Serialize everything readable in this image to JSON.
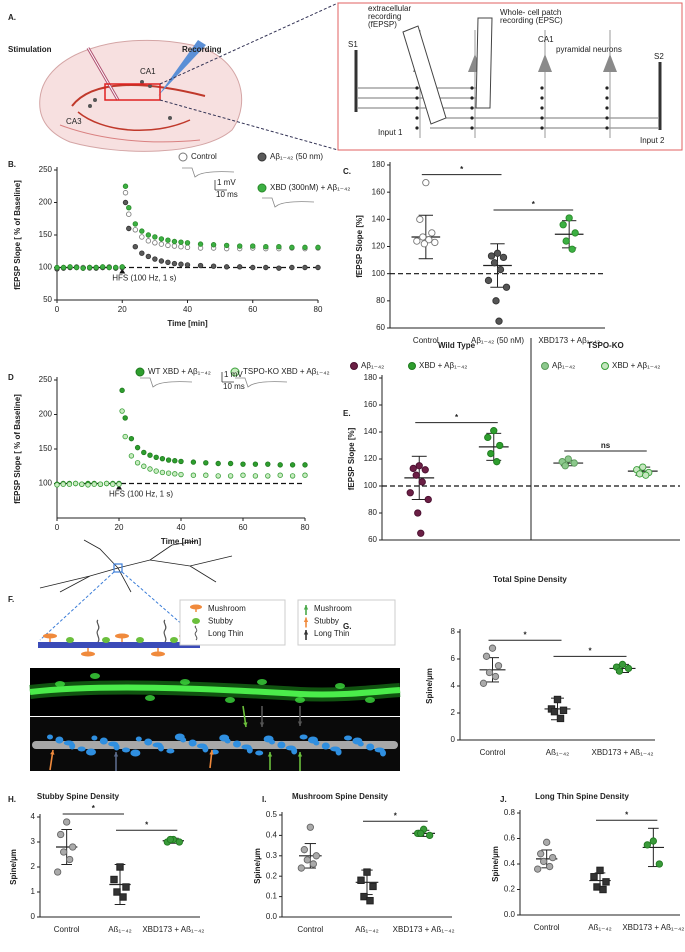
{
  "panels": {
    "A": {
      "label": "A.",
      "stimulation": "Stimulation",
      "recording": "Recording",
      "ca1": "CA1",
      "ca3": "CA3",
      "inset": {
        "extracellular": [
          "extracellular",
          "recording",
          "(fEPSP)"
        ],
        "whole_cell": [
          "Whole- cell patch",
          "recording (EPSC)"
        ],
        "s1": "S1",
        "s2": "S2",
        "ca1": "CA1",
        "pyramidal": "pyramidal neurons",
        "input1": "Input 1",
        "input2": "Input 2"
      }
    },
    "F": {
      "label": "F.",
      "shapes": [
        "Mushroom",
        "Stubby",
        "Long Thin"
      ],
      "arrows": [
        "Mushroom",
        "Stubby",
        "Long Thin"
      ]
    }
  },
  "chart_data": [
    {
      "type": "line",
      "panel_label": "B.",
      "x": [
        0,
        2,
        4,
        6,
        8,
        10,
        12,
        14,
        16,
        18,
        20,
        21,
        22,
        24,
        26,
        28,
        30,
        32,
        34,
        36,
        38,
        40,
        44,
        48,
        52,
        56,
        60,
        64,
        68,
        72,
        76,
        80
      ],
      "xlim": [
        0,
        80
      ],
      "xticks": [
        0,
        20,
        40,
        60,
        80
      ],
      "ylim": [
        50,
        250
      ],
      "yticks": [
        50,
        100,
        150,
        200,
        250
      ],
      "xlabel": "Time [min]",
      "ylabel": "fEPSP Slope [ % of Baseline]",
      "reference_line": 100,
      "stimulus": {
        "x": 20,
        "label": "HFS (100 Hz, 1 s)"
      },
      "scale_bar": [
        "1 mV",
        "10 ms"
      ],
      "series": [
        {
          "name": "Control",
          "color": "#777777",
          "fill": "#ffffff",
          "values": [
            99,
            100,
            100,
            101,
            100,
            99,
            100,
            100,
            101,
            100,
            100,
            215,
            182,
            158,
            147,
            141,
            138,
            136,
            134,
            133,
            132,
            131,
            130,
            130,
            129,
            129,
            130,
            129,
            129,
            130,
            129,
            130
          ]
        },
        {
          "name": "Aβ₁₋₄₂ (50 nm)",
          "color": "#333333",
          "fill": "#5a5a5a",
          "values": [
            98,
            99,
            100,
            100,
            99,
            100,
            99,
            100,
            100,
            99,
            100,
            200,
            160,
            132,
            122,
            117,
            113,
            110,
            108,
            106,
            105,
            104,
            103,
            102,
            101,
            101,
            100,
            100,
            99,
            100,
            100,
            100
          ]
        },
        {
          "name": "XBD (300nM) + Aβ₁₋₄₂",
          "color": "#2a8a2a",
          "fill": "#3cb043",
          "values": [
            100,
            100,
            101,
            100,
            99,
            100,
            100,
            101,
            100,
            100,
            101,
            225,
            192,
            167,
            156,
            150,
            147,
            144,
            142,
            140,
            139,
            138,
            136,
            135,
            134,
            133,
            133,
            132,
            132,
            131,
            131,
            131
          ]
        }
      ]
    },
    {
      "type": "dotplot",
      "panel_label": "C.",
      "ylabel": "fEPSP Slope [%]",
      "ylim": [
        60,
        180
      ],
      "yticks": [
        60,
        80,
        100,
        120,
        140,
        160,
        180
      ],
      "reference_line": 100,
      "categories": [
        "Control",
        "Aβ₁₋₄₂ (50 nM)",
        "XBD173 + Aβ₁₋₄₂"
      ],
      "series": [
        {
          "color": "#777777",
          "fill": "#ffffff",
          "marker": "circle",
          "points": [
            167,
            140,
            130,
            127,
            125,
            124,
            123,
            122
          ],
          "mean": 127,
          "error": 16
        },
        {
          "color": "#333333",
          "fill": "#555555",
          "marker": "circle",
          "points": [
            115,
            113,
            112,
            108,
            103,
            95,
            90,
            80,
            65
          ],
          "mean": 106,
          "error": 16
        },
        {
          "color": "#2a8a2a",
          "fill": "#3cb043",
          "marker": "circle",
          "points": [
            141,
            136,
            130,
            124,
            118
          ],
          "mean": 129,
          "error": 10
        }
      ],
      "annotations": [
        {
          "text": "*",
          "between": [
            0,
            1
          ]
        },
        {
          "text": "*",
          "between": [
            1,
            2
          ]
        }
      ]
    },
    {
      "type": "line",
      "panel_label": "D",
      "x": [
        0,
        2,
        4,
        6,
        8,
        10,
        12,
        14,
        16,
        18,
        20,
        21,
        22,
        24,
        26,
        28,
        30,
        32,
        34,
        36,
        38,
        40,
        44,
        48,
        52,
        56,
        60,
        64,
        68,
        72,
        76,
        80
      ],
      "xlim": [
        0,
        80
      ],
      "xticks": [
        0,
        20,
        40,
        60,
        80
      ],
      "ylim": [
        50,
        250
      ],
      "yticks": [
        100,
        150,
        200,
        250
      ],
      "xlabel": "Time [min]",
      "ylabel": "fEPSP Slope [ % of Baseline]",
      "reference_line": 100,
      "stimulus": {
        "x": 20,
        "label": "HFS (100 Hz, 1 s)"
      },
      "scale_bar": [
        "1 mV",
        "10 ms"
      ],
      "series": [
        {
          "name": "WT XBD + Aβ₁₋₄₂",
          "color": "#1f7a1f",
          "fill": "#2e9e2e",
          "values": [
            99,
            100,
            100,
            100,
            99,
            100,
            100,
            99,
            100,
            100,
            100,
            235,
            195,
            165,
            152,
            145,
            141,
            138,
            136,
            134,
            133,
            132,
            131,
            130,
            129,
            129,
            128,
            128,
            128,
            127,
            127,
            127
          ]
        },
        {
          "name": "TSPO-KO XBD + Aβ₁₋₄₂",
          "color": "#3aa03a",
          "fill": "#c8ecc0",
          "values": [
            98,
            99,
            99,
            100,
            99,
            98,
            99,
            99,
            100,
            99,
            99,
            205,
            168,
            140,
            130,
            125,
            121,
            118,
            116,
            115,
            114,
            113,
            112,
            112,
            111,
            111,
            112,
            111,
            111,
            112,
            111,
            112
          ]
        }
      ]
    },
    {
      "type": "dotplot",
      "panel_label": "E.",
      "ylabel": "fEPSP Slope [%]",
      "ylim": [
        60,
        180
      ],
      "yticks": [
        60,
        80,
        100,
        120,
        140,
        160,
        180
      ],
      "reference_line": 100,
      "groups": [
        "Wild Type",
        "TSPO-KO"
      ],
      "series": [
        {
          "name": "Aβ₁₋₄₂",
          "color": "#4a1030",
          "fill": "#6b1f45",
          "marker": "circle",
          "points": [
            115,
            113,
            112,
            108,
            103,
            95,
            90,
            80,
            65
          ],
          "mean": 106,
          "error": 16
        },
        {
          "name": "XBD + Aβ₁₋₄₂",
          "color": "#1f7a1f",
          "fill": "#2e9e2e",
          "marker": "circle",
          "points": [
            141,
            136,
            130,
            124,
            118
          ],
          "mean": 129,
          "error": 10
        },
        {
          "name": "Aβ₁₋₄₂",
          "color": "#5a9a5a",
          "fill": "#8cc88c",
          "marker": "circle",
          "points": [
            120,
            118,
            117,
            115
          ],
          "mean": 117,
          "error": 2
        },
        {
          "name": "XBD + Aβ₁₋₄₂",
          "color": "#3aa03a",
          "fill": "#c6e6c0",
          "marker": "circle",
          "points": [
            114,
            112,
            110,
            109,
            108
          ],
          "mean": 111,
          "error": 3
        }
      ],
      "annotations": [
        {
          "text": "*",
          "between": [
            0,
            1
          ]
        },
        {
          "text": "ns",
          "between": [
            2,
            3
          ]
        }
      ]
    },
    {
      "type": "dotplot",
      "panel_label": "G.",
      "title": "Total Spine Density",
      "ylabel": "Spine/µm",
      "ylim": [
        0,
        8
      ],
      "yticks": [
        0,
        2,
        4,
        6,
        8
      ],
      "categories": [
        "Control",
        "Aß₁₋₄₂",
        "XBD173 + Aß₁₋₄₂"
      ],
      "series": [
        {
          "color": "#666666",
          "fill": "#aaaaaa",
          "marker": "circle",
          "points": [
            6.8,
            6.2,
            5.5,
            5.0,
            4.7,
            4.2
          ],
          "mean": 5.2,
          "error": 0.9
        },
        {
          "color": "#222222",
          "fill": "#333333",
          "marker": "square",
          "points": [
            3.0,
            2.3,
            2.2,
            2.1,
            1.6
          ],
          "mean": 2.3,
          "error": 0.8
        },
        {
          "color": "#1f7a1f",
          "fill": "#3a9a3a",
          "marker": "circle",
          "points": [
            5.6,
            5.4,
            5.3,
            5.1
          ],
          "mean": 5.3,
          "error": 0.3
        }
      ],
      "annotations": [
        {
          "text": "*",
          "between": [
            0,
            1
          ]
        },
        {
          "text": "*",
          "between": [
            1,
            2
          ]
        }
      ]
    },
    {
      "type": "dotplot",
      "panel_label": "H.",
      "title": "Stubby Spine Density",
      "ylabel": "Spine/µm",
      "ylim": [
        0,
        4
      ],
      "yticks": [
        0,
        1,
        2,
        3,
        4
      ],
      "categories": [
        "Control",
        "Aß₁₋₄₂",
        "XBD173 + Aß₁₋₄₂"
      ],
      "series": [
        {
          "color": "#666666",
          "fill": "#aaaaaa",
          "marker": "circle",
          "points": [
            3.8,
            3.3,
            2.8,
            2.6,
            2.3,
            1.8
          ],
          "mean": 2.8,
          "error": 0.7
        },
        {
          "color": "#222222",
          "fill": "#333333",
          "marker": "square",
          "points": [
            2.0,
            1.5,
            1.2,
            1.0,
            0.8
          ],
          "mean": 1.3,
          "error": 0.8
        },
        {
          "color": "#1f7a1f",
          "fill": "#3a9a3a",
          "marker": "circle",
          "points": [
            3.1,
            3.0,
            3.0,
            3.1
          ],
          "mean": 3.05,
          "error": 0.1
        }
      ],
      "annotations": [
        {
          "text": "*",
          "between": [
            0,
            1
          ]
        },
        {
          "text": "*",
          "between": [
            1,
            2
          ]
        }
      ]
    },
    {
      "type": "dotplot",
      "panel_label": "I.",
      "title": "Mushroom Spine Density",
      "ylabel": "Spine/µm",
      "ylim": [
        0,
        0.5
      ],
      "yticks": [
        {
          "value": 0,
          "label": "0.0"
        },
        0.1,
        0.2,
        0.3,
        0.4,
        0.5
      ],
      "categories": [
        "Control",
        "Aß₁₋₄₂",
        "XBD173 + Aß₁₋₄₂"
      ],
      "series": [
        {
          "color": "#666666",
          "fill": "#aaaaaa",
          "marker": "circle",
          "points": [
            0.44,
            0.33,
            0.3,
            0.28,
            0.26,
            0.24
          ],
          "mean": 0.3,
          "error": 0.06
        },
        {
          "color": "#222222",
          "fill": "#333333",
          "marker": "square",
          "points": [
            0.22,
            0.18,
            0.15,
            0.1,
            0.08
          ],
          "mean": 0.17,
          "error": 0.06
        },
        {
          "color": "#1f7a1f",
          "fill": "#3a9a3a",
          "marker": "circle",
          "points": [
            0.43,
            0.41,
            0.4,
            0.41
          ],
          "mean": 0.41,
          "error": 0.015
        }
      ],
      "annotations": [
        {
          "text": "*",
          "between": [
            1,
            2
          ]
        }
      ]
    },
    {
      "type": "dotplot",
      "panel_label": "J.",
      "title": "Long Thin Spine Density",
      "ylabel": "Spine/µm",
      "ylim": [
        0,
        0.8
      ],
      "yticks": [
        {
          "value": 0,
          "label": "0.0"
        },
        0.2,
        0.4,
        0.6,
        0.8
      ],
      "categories": [
        "Control",
        "Aß₁₋₄₂",
        "XBD173 + Aß₁₋₄₂"
      ],
      "series": [
        {
          "color": "#666666",
          "fill": "#aaaaaa",
          "marker": "circle",
          "points": [
            0.57,
            0.48,
            0.45,
            0.42,
            0.38,
            0.36
          ],
          "mean": 0.44,
          "error": 0.07
        },
        {
          "color": "#222222",
          "fill": "#333333",
          "marker": "square",
          "points": [
            0.35,
            0.3,
            0.26,
            0.22,
            0.2
          ],
          "mean": 0.27,
          "error": 0.06
        },
        {
          "color": "#1f7a1f",
          "fill": "#3a9a3a",
          "marker": "circle",
          "points": [
            0.58,
            0.55,
            0.4
          ],
          "mean": 0.53,
          "error": 0.15
        }
      ],
      "annotations": [
        {
          "text": "*",
          "between": [
            1,
            2
          ]
        }
      ]
    }
  ]
}
